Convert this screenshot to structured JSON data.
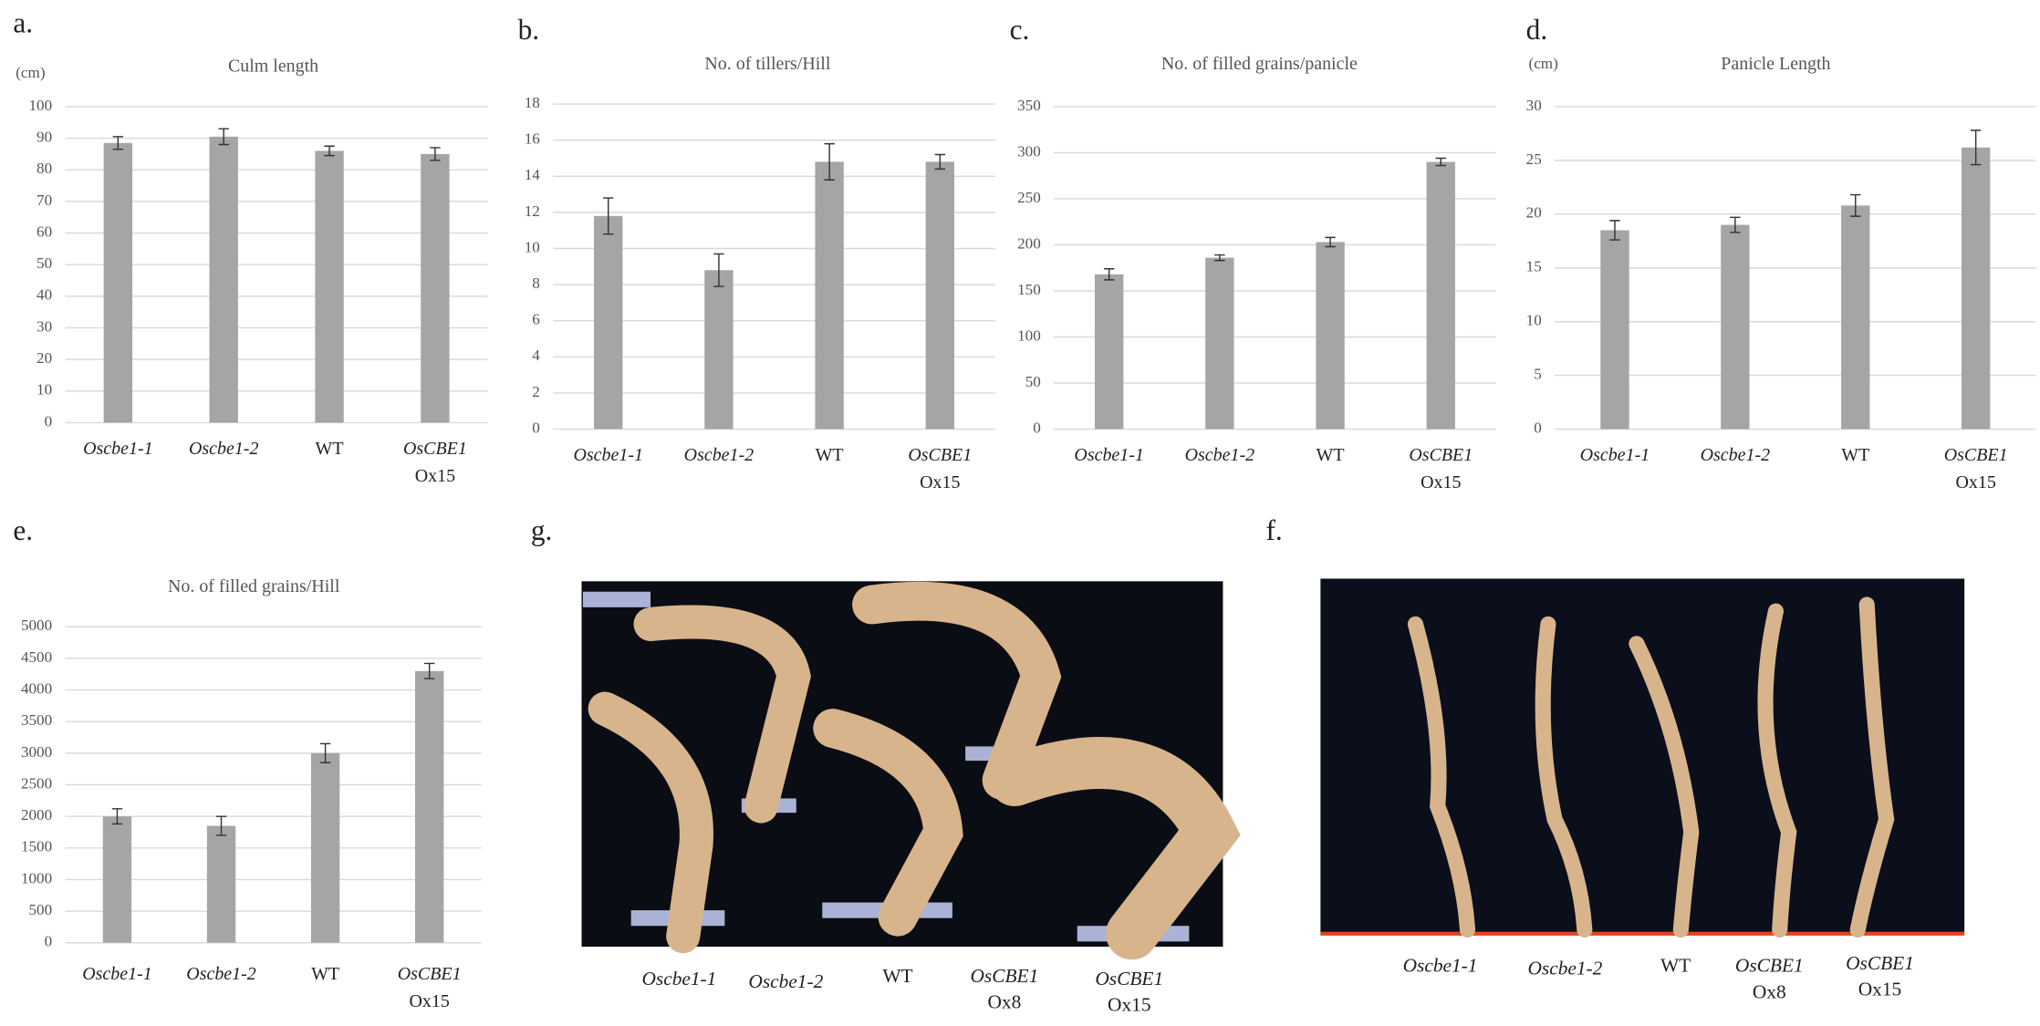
{
  "chart_data": [
    {
      "type": "bar",
      "label": "a.",
      "unit": "(cm)",
      "title": "Culm length",
      "categories": [
        [
          "Oscbe1-1"
        ],
        [
          "Oscbe1-2"
        ],
        [
          "WT"
        ],
        [
          "OsCBE1",
          "Ox15"
        ]
      ],
      "category_italic": [
        true,
        true,
        false,
        true
      ],
      "values": [
        88.5,
        90.5,
        86,
        85
      ],
      "errors": [
        2,
        2.5,
        1.5,
        2
      ],
      "color": "#a5a5a5",
      "ylim": [
        0,
        100
      ],
      "yticks": [
        0,
        10,
        20,
        30,
        40,
        50,
        60,
        70,
        80,
        90,
        100
      ],
      "grid": true
    },
    {
      "type": "bar",
      "label": "b.",
      "title": "No. of tillers/Hill",
      "categories": [
        [
          "Oscbe1-1"
        ],
        [
          "Oscbe1-2"
        ],
        [
          "WT"
        ],
        [
          "OsCBE1",
          "Ox15"
        ]
      ],
      "category_italic": [
        true,
        true,
        false,
        true
      ],
      "values": [
        11.8,
        8.8,
        14.8,
        14.8
      ],
      "errors": [
        1,
        0.9,
        1,
        0.4
      ],
      "color": "#a5a5a5",
      "ylim": [
        0,
        18
      ],
      "yticks": [
        0,
        2,
        4,
        6,
        8,
        10,
        12,
        14,
        16,
        18
      ],
      "grid": true
    },
    {
      "type": "bar",
      "label": "c.",
      "title": "No. of filled grains/panicle",
      "categories": [
        [
          "Oscbe1-1"
        ],
        [
          "Oscbe1-2"
        ],
        [
          "WT"
        ],
        [
          "OsCBE1",
          "Ox15"
        ]
      ],
      "category_italic": [
        true,
        true,
        false,
        true
      ],
      "values": [
        168,
        186,
        203,
        290
      ],
      "errors": [
        6,
        3,
        5,
        4
      ],
      "color": "#a5a5a5",
      "ylim": [
        0,
        350
      ],
      "yticks": [
        0,
        50,
        100,
        150,
        200,
        250,
        300,
        350
      ],
      "grid": true
    },
    {
      "type": "bar",
      "label": "d.",
      "unit": "(cm)",
      "title": "Panicle Length",
      "categories": [
        [
          "Oscbe1-1"
        ],
        [
          "Oscbe1-2"
        ],
        [
          "WT"
        ],
        [
          "OsCBE1",
          "Ox15"
        ]
      ],
      "category_italic": [
        true,
        true,
        false,
        true
      ],
      "values": [
        18.5,
        19,
        20.8,
        26.2
      ],
      "errors": [
        0.9,
        0.7,
        1,
        1.6
      ],
      "color": "#a5a5a5",
      "ylim": [
        0,
        30
      ],
      "yticks": [
        0,
        5,
        10,
        15,
        20,
        25,
        30
      ],
      "grid": true
    },
    {
      "type": "bar",
      "label": "e.",
      "title": "No. of filled grains/Hill",
      "categories": [
        [
          "Oscbe1-1"
        ],
        [
          "Oscbe1-2"
        ],
        [
          "WT"
        ],
        [
          "OsCBE1",
          "Ox15"
        ]
      ],
      "category_italic": [
        true,
        true,
        false,
        true
      ],
      "values": [
        2000,
        1850,
        3000,
        4300
      ],
      "errors": [
        120,
        150,
        150,
        120
      ],
      "color": "#a5a5a5",
      "ylim": [
        0,
        5000
      ],
      "yticks": [
        0,
        500,
        1000,
        1500,
        2000,
        2500,
        3000,
        3500,
        4000,
        4500,
        5000
      ],
      "grid": true
    }
  ],
  "photos": [
    {
      "label": "g.",
      "captions": [
        [
          "Oscbe1-1"
        ],
        [
          "Oscbe1-2"
        ],
        [
          "WT"
        ],
        [
          "OsCBE1",
          "Ox8"
        ],
        [
          "OsCBE1",
          "Ox15"
        ]
      ],
      "caption_italic": [
        true,
        true,
        false,
        true,
        true
      ]
    },
    {
      "label": "f.",
      "captions": [
        [
          "Oscbe1-1"
        ],
        [
          "Oscbe1-2"
        ],
        [
          "WT"
        ],
        [
          "OsCBE1",
          "Ox8"
        ],
        [
          "OsCBE1",
          "Ox15"
        ]
      ],
      "caption_italic": [
        true,
        true,
        false,
        true,
        true
      ]
    }
  ]
}
